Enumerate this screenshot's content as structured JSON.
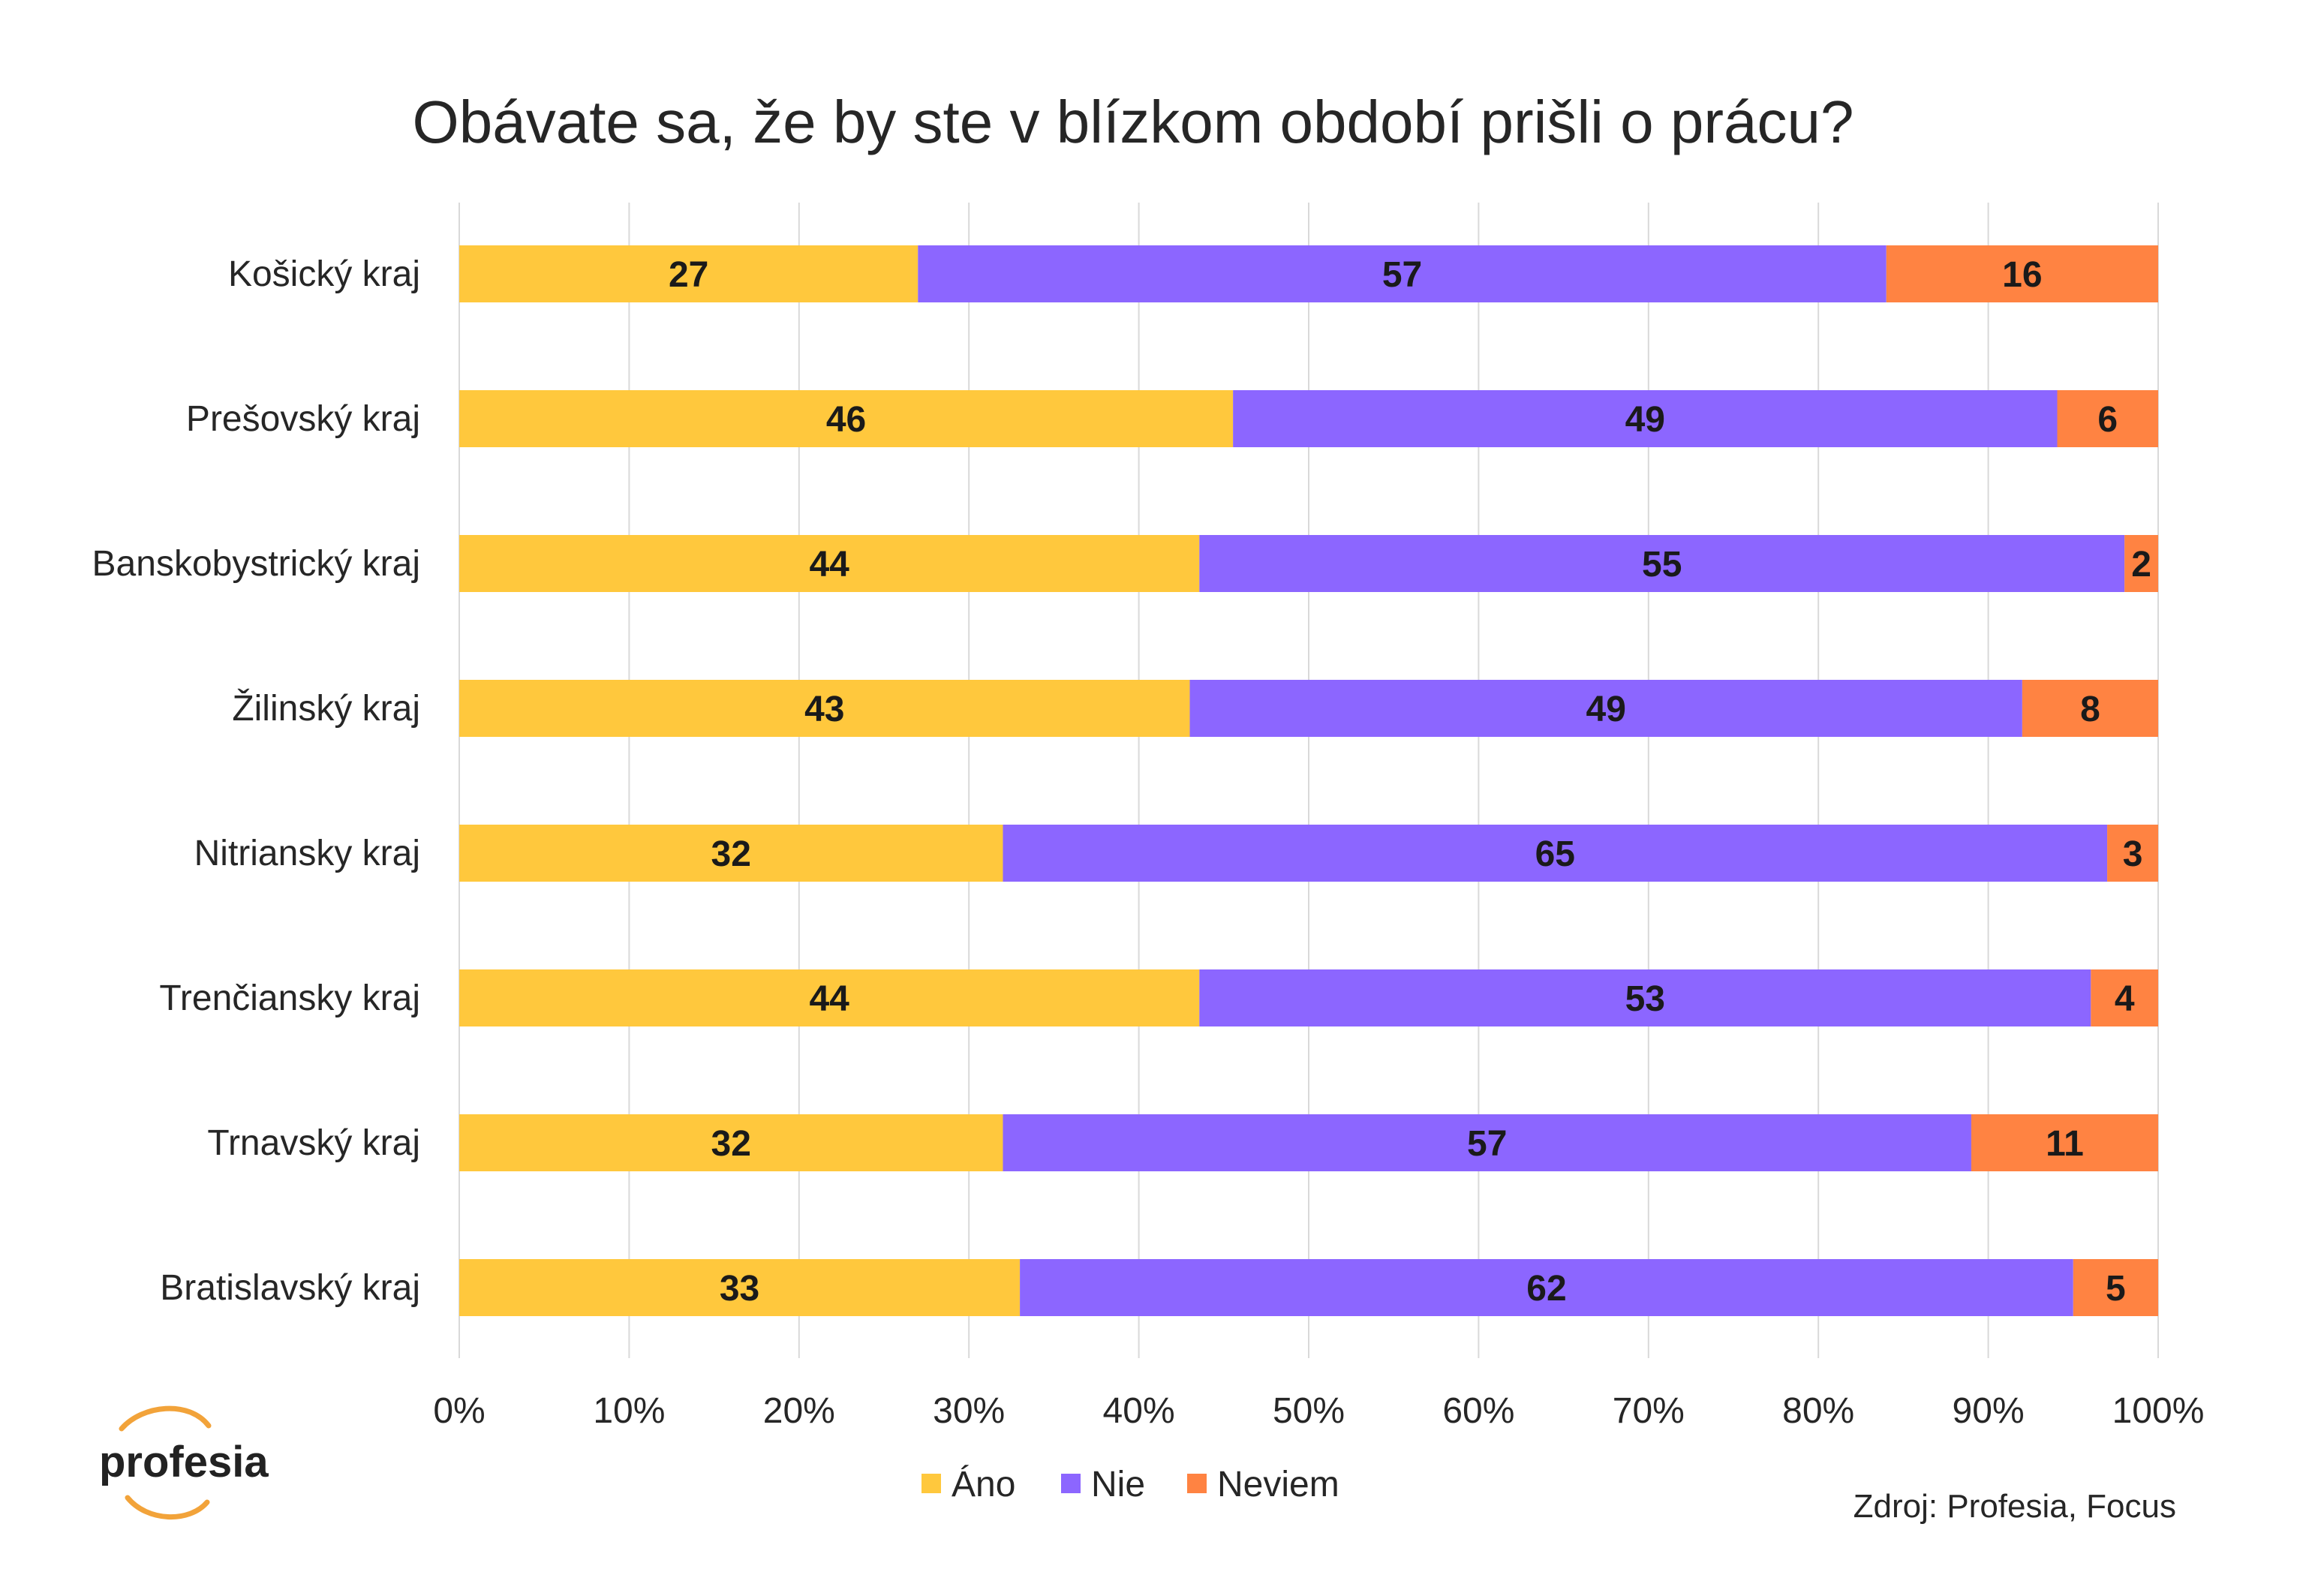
{
  "colors": {
    "ano": "#ffc83d",
    "nie": "#8c66ff",
    "neviem": "#ff8342",
    "grid": "#d9d9d9",
    "text": "#262626",
    "logo_arc": "#f2a33a"
  },
  "chart_data": {
    "type": "bar",
    "orientation": "horizontal",
    "stacked": "percent",
    "title": "Obávate sa, že by ste v blízkom období prišli o prácu?",
    "categories": [
      "Košický kraj",
      "Prešovský kraj",
      "Banskobystrický kraj",
      "Žilinský kraj",
      "Nitriansky kraj",
      "Trenčiansky kraj",
      "Trnavský kraj",
      "Bratislavský kraj"
    ],
    "series": [
      {
        "name": "Áno",
        "color": "#ffc83d",
        "values": [
          27,
          46,
          44,
          43,
          32,
          44,
          32,
          33
        ]
      },
      {
        "name": "Nie",
        "color": "#8c66ff",
        "values": [
          57,
          49,
          55,
          49,
          65,
          53,
          57,
          62
        ]
      },
      {
        "name": "Neviem",
        "color": "#ff8342",
        "values": [
          16,
          6,
          2,
          8,
          3,
          4,
          11,
          5
        ]
      }
    ],
    "xlim": [
      0,
      100
    ],
    "xticks": [
      "0%",
      "10%",
      "20%",
      "30%",
      "40%",
      "50%",
      "60%",
      "70%",
      "80%",
      "90%",
      "100%"
    ],
    "xlabel": "",
    "ylabel": "",
    "grid": true,
    "legend": {
      "placement": "bottom-center",
      "entries": [
        "Áno",
        "Nie",
        "Neviem"
      ]
    }
  },
  "source": "Zdroj: Profesia, Focus",
  "logo": {
    "text": "profesia"
  }
}
